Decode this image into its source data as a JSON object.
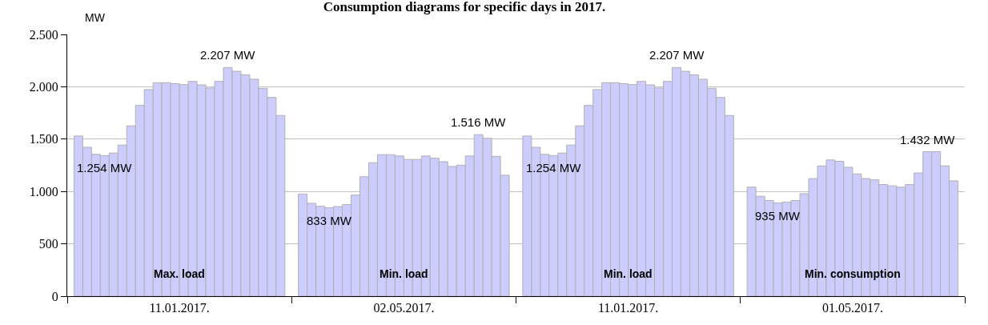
{
  "chart_data": {
    "type": "bar",
    "title": "Consumption diagrams for specific days in 2017.",
    "ylabel": "MW",
    "categories": [
      "11.01.2017.",
      "02.05.2017.",
      "11.01.2017.",
      "01.05.2017."
    ],
    "series": [
      {
        "color": "#ccccff",
        "values": [
          1530,
          976,
          1530,
          1041
        ]
      },
      {
        "color": "#ccccff",
        "values": [
          1422,
          887,
          1422,
          954
        ]
      },
      {
        "color": "#ccccff",
        "values": [
          1355,
          859,
          1355,
          914
        ]
      },
      {
        "color": "#ccccff",
        "values": [
          1343,
          844,
          1343,
          890
        ]
      },
      {
        "color": "#ccccff",
        "values": [
          1367,
          856,
          1367,
          899
        ]
      },
      {
        "color": "#ccccff",
        "values": [
          1443,
          875,
          1443,
          914
        ]
      },
      {
        "color": "#ccccff",
        "values": [
          1627,
          966,
          1627,
          979
        ]
      },
      {
        "color": "#ccccff",
        "values": [
          1822,
          1141,
          1822,
          1123
        ]
      },
      {
        "color": "#ccccff",
        "values": [
          1973,
          1275,
          1973,
          1244
        ]
      },
      {
        "color": "#ccccff",
        "values": [
          2039,
          1352,
          2039,
          1301
        ]
      },
      {
        "color": "#ccccff",
        "values": [
          2039,
          1352,
          2039,
          1288
        ]
      },
      {
        "color": "#ccccff",
        "values": [
          2030,
          1339,
          2030,
          1231
        ]
      },
      {
        "color": "#ccccff",
        "values": [
          2021,
          1306,
          2021,
          1168
        ]
      },
      {
        "color": "#ccccff",
        "values": [
          2051,
          1306,
          2051,
          1123
        ]
      },
      {
        "color": "#ccccff",
        "values": [
          2018,
          1339,
          2018,
          1111
        ]
      },
      {
        "color": "#ccccff",
        "values": [
          1988,
          1318,
          1988,
          1066
        ]
      },
      {
        "color": "#ccccff",
        "values": [
          2051,
          1284,
          2051,
          1054
        ]
      },
      {
        "color": "#ccccff",
        "values": [
          2184,
          1239,
          2184,
          1041
        ]
      },
      {
        "color": "#ccccff",
        "values": [
          2148,
          1251,
          2148,
          1066
        ]
      },
      {
        "color": "#ccccff",
        "values": [
          2114,
          1339,
          2114,
          1177
        ]
      },
      {
        "color": "#ccccff",
        "values": [
          2072,
          1543,
          2072,
          1380
        ]
      },
      {
        "color": "#ccccff",
        "values": [
          1985,
          1508,
          1985,
          1380
        ]
      },
      {
        "color": "#ccccff",
        "values": [
          1898,
          1336,
          1898,
          1244
        ]
      },
      {
        "color": "#ccccff",
        "values": [
          1726,
          1155,
          1726,
          1101
        ]
      }
    ],
    "ylim": [
      0,
      2500
    ],
    "yticks": [
      0,
      500,
      {
        "value": 1000,
        "label": "1.000"
      },
      {
        "value": 1500,
        "label": "1.500"
      },
      {
        "value": 2000,
        "label": "2.000"
      },
      {
        "value": 2500,
        "label": "2.500"
      }
    ],
    "grid": "y",
    "annotations": [
      "2.207 MW",
      "1.254 MW",
      "Max. load",
      "1.516 MW",
      "833 MW",
      "Min. load",
      "2.207 MW",
      "1.254 MW",
      "Min. load",
      "1.432 MW",
      "935 MW",
      "Min. consumption"
    ]
  }
}
